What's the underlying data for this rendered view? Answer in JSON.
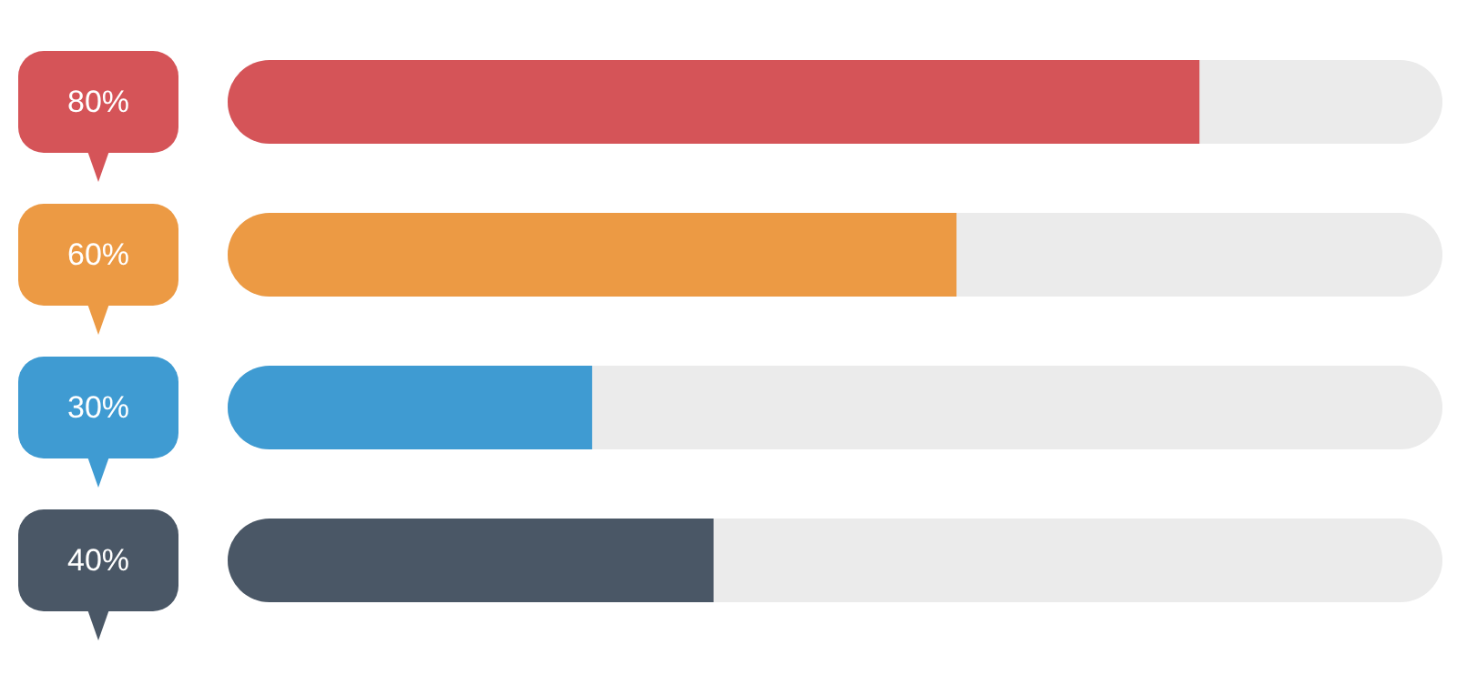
{
  "chart_data": {
    "type": "bar",
    "orientation": "horizontal",
    "categories": [
      null,
      null,
      null,
      null
    ],
    "values": [
      80,
      60,
      30,
      40
    ],
    "colors": [
      "#d55458",
      "#ec9a44",
      "#3f9bd2",
      "#4a5766"
    ],
    "value_labels": [
      "80%",
      "60%",
      "30%",
      "40%"
    ],
    "xlim": [
      0,
      100
    ]
  }
}
